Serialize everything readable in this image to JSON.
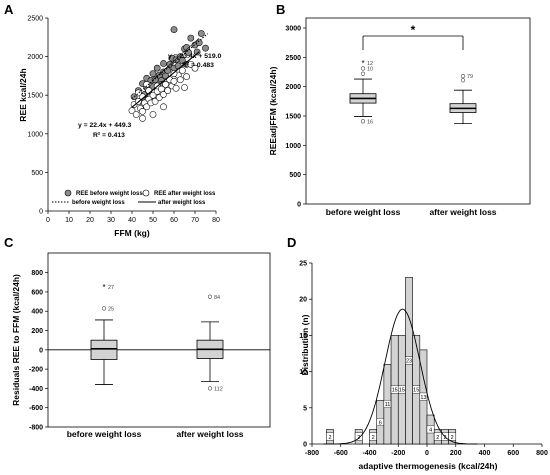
{
  "chart_data": [
    {
      "panel": "A",
      "type": "scatter",
      "xlabel": "FFM (kg)",
      "ylabel": "REE kcal/24h",
      "xlim": [
        0,
        80
      ],
      "ylim": [
        0,
        2500
      ],
      "xticks": [
        "0",
        "10",
        "20",
        "30",
        "40",
        "50",
        "60",
        "70",
        "80"
      ],
      "yticks": [
        "0",
        "500",
        "1000",
        "1500",
        "2000",
        "2500"
      ],
      "series": [
        {
          "name": "REE before weight loss",
          "equation": "y = 23.4x + 519.0",
          "r2": "R² = 0.483",
          "x": [
            41,
            43,
            44,
            45,
            46,
            47,
            47,
            48,
            49,
            50,
            50,
            51,
            52,
            52,
            53,
            54,
            55,
            55,
            56,
            57,
            58,
            58,
            59,
            60,
            61,
            62,
            63,
            64,
            65,
            66,
            67,
            68,
            70,
            72,
            73,
            75,
            50,
            54,
            60,
            66,
            71
          ],
          "y": [
            1480,
            1560,
            1420,
            1650,
            1510,
            1600,
            1720,
            1550,
            1690,
            1610,
            1780,
            1700,
            1620,
            1850,
            1760,
            1690,
            1800,
            1910,
            1750,
            1820,
            1900,
            1700,
            1980,
            1850,
            1960,
            1880,
            2000,
            1950,
            2100,
            1900,
            2050,
            2240,
            2150,
            2180,
            2300,
            2110,
            1450,
            1640,
            2350,
            2120,
            2060
          ]
        },
        {
          "name": "REE after weight loss",
          "equation": "y = 22.4x + 449.3",
          "r2": "R² = 0.413",
          "x": [
            40,
            41,
            42,
            43,
            44,
            45,
            45,
            46,
            47,
            48,
            48,
            49,
            50,
            51,
            52,
            52,
            53,
            54,
            55,
            56,
            57,
            58,
            59,
            60,
            61,
            62,
            63,
            64,
            66,
            68,
            70,
            45,
            50,
            55,
            60,
            65,
            43,
            47
          ],
          "y": [
            1300,
            1380,
            1250,
            1420,
            1330,
            1290,
            1480,
            1400,
            1350,
            1450,
            1560,
            1400,
            1500,
            1420,
            1550,
            1620,
            1470,
            1580,
            1510,
            1640,
            1560,
            1700,
            1620,
            1680,
            1590,
            1760,
            1700,
            1820,
            1740,
            1900,
            1850,
            1200,
            1250,
            1350,
            1780,
            1600,
            1530,
            1640
          ]
        }
      ],
      "legend": [
        "REE before weight loss",
        "REE after weight loss",
        "before weight loss",
        "after weight loss"
      ],
      "legend_position": "bottom"
    },
    {
      "panel": "B",
      "type": "box",
      "ylabel": "REEadjFFM",
      "ylabel_unit": " (kcal/24h)",
      "categories": [
        "before weight loss",
        "after weight loss"
      ],
      "ylim": [
        0,
        3000
      ],
      "yticks": [
        "0",
        "500",
        "1000",
        "1500",
        "2000",
        "2500",
        "3000"
      ],
      "boxes": [
        {
          "min": 1490,
          "q1": 1720,
          "median": 1800,
          "q3": 1880,
          "max": 2130,
          "outliers": [
            {
              "v": 2400,
              "label": "12",
              "star": true
            },
            {
              "v": 2310,
              "label": "10",
              "star": false
            },
            {
              "v": 2220,
              "label": "",
              "star": false
            },
            {
              "v": 1410,
              "label": "16",
              "star": false
            }
          ]
        },
        {
          "min": 1370,
          "q1": 1560,
          "median": 1630,
          "q3": 1710,
          "max": 1940,
          "outliers": [
            {
              "v": 2180,
              "label": "79",
              "star": false
            },
            {
              "v": 2110,
              "label": "",
              "star": false
            }
          ]
        }
      ],
      "significance": "*"
    },
    {
      "panel": "C",
      "type": "box",
      "ylabel": "Residuals REE to FFM (kcal/24h)",
      "categories": [
        "before weight loss",
        "after weight loss"
      ],
      "ylim": [
        -800,
        900
      ],
      "yticks": [
        "-800",
        "-600",
        "-400",
        "-200",
        "0",
        "200",
        "400",
        "600",
        "800"
      ],
      "boxes": [
        {
          "min": -360,
          "q1": -100,
          "median": 10,
          "q3": 100,
          "max": 310,
          "outliers": [
            {
              "v": 650,
              "label": "27",
              "star": true
            },
            {
              "v": 430,
              "label": "25",
              "star": false
            }
          ]
        },
        {
          "min": -330,
          "q1": -90,
          "median": 5,
          "q3": 100,
          "max": 290,
          "outliers": [
            {
              "v": 550,
              "label": "84",
              "star": false
            },
            {
              "v": -400,
              "label": "112",
              "star": false
            }
          ]
        }
      ]
    },
    {
      "panel": "D",
      "type": "bar",
      "xlabel": "adaptive thermogenesis (kcal/24h)",
      "ylabel": "Distribution (n)",
      "xlim": [
        -800,
        800
      ],
      "ylim": [
        0,
        25
      ],
      "xticks": [
        "-800",
        "-600",
        "-400",
        "-200",
        "0",
        "200",
        "400",
        "600",
        "800"
      ],
      "yticks": [
        "0",
        "5",
        "10",
        "15",
        "20",
        "25"
      ],
      "bin_width": 50,
      "bin_starts": [
        -700,
        -500,
        -400,
        -350,
        -300,
        -250,
        -200,
        -150,
        -100,
        -50,
        0,
        50,
        100,
        150
      ],
      "values": [
        2,
        2,
        2,
        6,
        11,
        15,
        15,
        23,
        15,
        13,
        4,
        2,
        2,
        2
      ],
      "labels": [
        "2",
        "2",
        "2",
        "6",
        "11",
        "15",
        "15",
        "23",
        "15",
        "13",
        "4",
        "2",
        "2",
        "2"
      ],
      "normal_curve": {
        "mean": -170,
        "sd": 122,
        "n": 114
      }
    }
  ],
  "panel_labels": [
    "A",
    "B",
    "C",
    "D"
  ]
}
